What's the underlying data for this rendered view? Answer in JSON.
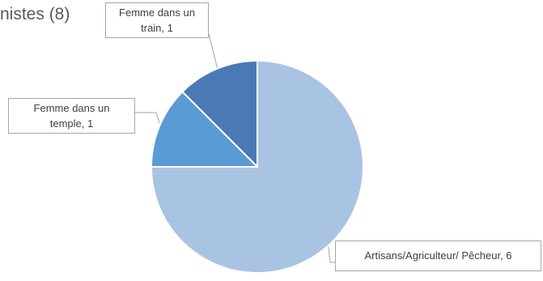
{
  "chart_data": {
    "type": "pie",
    "title": "nistes (8)",
    "slices": [
      {
        "label": "Femme dans un train",
        "value": 1,
        "color": "#4a7ab5",
        "callout_lines": [
          "Femme dans un",
          "train, 1"
        ]
      },
      {
        "label": "Femme dans un temple",
        "value": 1,
        "color": "#5b9bd5",
        "callout_lines": [
          "Femme dans un",
          "temple, 1"
        ]
      },
      {
        "label": "Artisans/Agriculteur/ Pêcheur",
        "value": 6,
        "color": "#a9c3e3",
        "callout_lines": [
          "Artisans/Agriculteur/ Pêcheur, 6"
        ]
      }
    ]
  }
}
